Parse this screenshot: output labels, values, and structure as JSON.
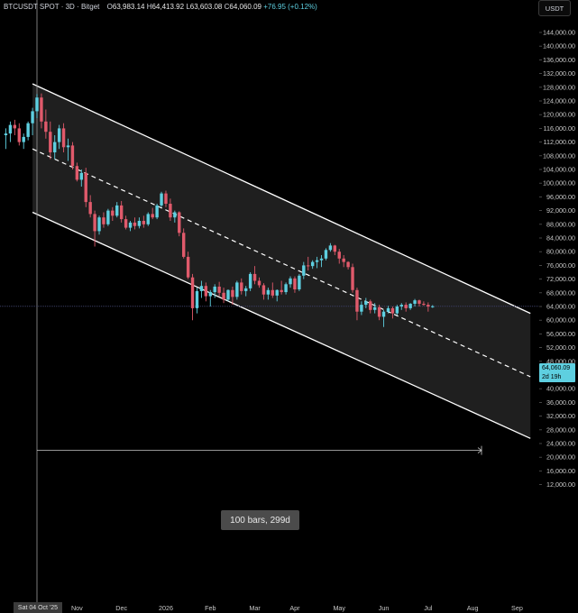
{
  "header": {
    "symbol": "BTCUSDT SPOT · 3D · Bitget",
    "o_label": "O",
    "o_val": "63,983.14",
    "h_label": "H",
    "h_val": "64,413.92",
    "l_label": "L",
    "l_val": "63,603.08",
    "c_label": "C",
    "c_val": "64,060.09",
    "change": "+76.95 (+0.12%)"
  },
  "currency_button": "USDT",
  "price_tag": {
    "price": "64,060.09",
    "countdown": "2d 19h"
  },
  "range_label": "100 bars, 299d",
  "crosshair_date": "Sat 04 Oct '25",
  "colors": {
    "up": "#5ecfe0",
    "down": "#e05a6b",
    "channel": "#ffffff",
    "fill": "#2a2a2a"
  },
  "chart_data": {
    "type": "candlestick",
    "y_axis": {
      "min": 12000,
      "max": 144000,
      "step": 4000,
      "tick_labels": [
        "144,000.00",
        "140,000.00",
        "136,000.00",
        "132,000.00",
        "128,000.00",
        "124,000.00",
        "120,000.00",
        "116,000.00",
        "112,000.00",
        "108,000.00",
        "104,000.00",
        "100,000.00",
        "96,000.00",
        "92,000.00",
        "88,000.00",
        "84,000.00",
        "80,000.00",
        "76,000.00",
        "72,000.00",
        "68,000.00",
        "64,000.00",
        "60,000.00",
        "56,000.00",
        "52,000.00",
        "48,000.00",
        "44,000.00",
        "40,000.00",
        "36,000.00",
        "32,000.00",
        "28,000.00",
        "24,000.00",
        "20,000.00",
        "16,000.00",
        "12,000.00"
      ]
    },
    "x_axis": {
      "ticks": [
        {
          "label": "Nov",
          "bar": 9
        },
        {
          "label": "Dec",
          "bar": 19
        },
        {
          "label": "2026",
          "bar": 29
        },
        {
          "label": "Feb",
          "bar": 39
        },
        {
          "label": "Mar",
          "bar": 49
        },
        {
          "label": "Apr",
          "bar": 58
        },
        {
          "label": "May",
          "bar": 68
        },
        {
          "label": "Jun",
          "bar": 78
        },
        {
          "label": "Jul",
          "bar": 88
        },
        {
          "label": "Aug",
          "bar": 98
        },
        {
          "label": "Sep",
          "bar": 108
        }
      ]
    },
    "channel": {
      "upper": [
        {
          "bar": -1,
          "price": 129000
        },
        {
          "bar": 111,
          "price": 62000
        }
      ],
      "middle": [
        {
          "bar": -1,
          "price": 110000
        },
        {
          "bar": 111,
          "price": 43500
        }
      ],
      "lower": [
        {
          "bar": -1,
          "price": 91500
        },
        {
          "bar": 111,
          "price": 25500
        }
      ]
    },
    "last_price": 64060.09,
    "measure": {
      "from_bar": 0,
      "to_bar": 100,
      "price": 22000
    },
    "candles": [
      [
        -7,
        114000,
        116000,
        110000,
        114500
      ],
      [
        -6,
        114500,
        118000,
        112000,
        117000
      ],
      [
        -5,
        117000,
        118500,
        114000,
        116000
      ],
      [
        -4,
        116000,
        117500,
        111000,
        112000
      ],
      [
        -3,
        112000,
        114500,
        110000,
        113500
      ],
      [
        -2,
        113500,
        118000,
        112500,
        117500
      ],
      [
        -1,
        117500,
        122000,
        114000,
        121000
      ],
      [
        0,
        121000,
        126000,
        119000,
        125000
      ],
      [
        1,
        125000,
        126200,
        116000,
        118000
      ],
      [
        2,
        118000,
        121500,
        113000,
        115000
      ],
      [
        3,
        115000,
        118000,
        107000,
        109000
      ],
      [
        4,
        109000,
        114000,
        107000,
        112000
      ],
      [
        5,
        112000,
        117000,
        110000,
        116000
      ],
      [
        6,
        116000,
        117500,
        109000,
        110500
      ],
      [
        7,
        110500,
        113000,
        106500,
        111000
      ],
      [
        8,
        111000,
        112000,
        104000,
        105000
      ],
      [
        9,
        105000,
        106000,
        100500,
        101000
      ],
      [
        10,
        101000,
        104000,
        99000,
        103000
      ],
      [
        11,
        103000,
        104500,
        93000,
        94500
      ],
      [
        12,
        94500,
        96500,
        90000,
        91000
      ],
      [
        13,
        91000,
        92000,
        81500,
        86000
      ],
      [
        14,
        86000,
        90500,
        85000,
        90000
      ],
      [
        15,
        90000,
        91500,
        87000,
        88000
      ],
      [
        16,
        88000,
        92500,
        87500,
        92000
      ],
      [
        17,
        92000,
        93000,
        89000,
        90500
      ],
      [
        18,
        90500,
        94500,
        90000,
        93500
      ],
      [
        19,
        93500,
        94800,
        88500,
        89500
      ],
      [
        20,
        89500,
        90500,
        86500,
        87000
      ],
      [
        21,
        87000,
        89000,
        86000,
        88500
      ],
      [
        22,
        88500,
        90000,
        86500,
        87500
      ],
      [
        23,
        87500,
        90000,
        86800,
        89000
      ],
      [
        24,
        89000,
        90500,
        87000,
        88000
      ],
      [
        25,
        88000,
        91500,
        87500,
        91000
      ],
      [
        26,
        91000,
        92800,
        89500,
        90000
      ],
      [
        27,
        90000,
        94000,
        89500,
        93500
      ],
      [
        28,
        93500,
        97500,
        93000,
        97000
      ],
      [
        29,
        97000,
        97800,
        93000,
        94000
      ],
      [
        30,
        94000,
        95500,
        89000,
        90000
      ],
      [
        31,
        90000,
        92000,
        88500,
        91500
      ],
      [
        32,
        91500,
        91800,
        84500,
        85500
      ],
      [
        33,
        85500,
        86800,
        78000,
        78500
      ],
      [
        34,
        78500,
        80000,
        72000,
        72500
      ],
      [
        35,
        72500,
        73500,
        60000,
        63500
      ],
      [
        36,
        63500,
        69500,
        62000,
        68500
      ],
      [
        37,
        68500,
        71500,
        66500,
        70000
      ],
      [
        38,
        70000,
        71000,
        65500,
        67000
      ],
      [
        39,
        67000,
        68800,
        64000,
        68200
      ],
      [
        40,
        68200,
        70500,
        66500,
        69800
      ],
      [
        41,
        69800,
        71200,
        67000,
        68000
      ],
      [
        42,
        68000,
        69500,
        65000,
        66000
      ],
      [
        43,
        66000,
        69000,
        65500,
        68800
      ],
      [
        44,
        68800,
        69800,
        64500,
        66800
      ],
      [
        45,
        66800,
        71500,
        66000,
        71000
      ],
      [
        46,
        71000,
        72200,
        67500,
        68500
      ],
      [
        47,
        68500,
        70000,
        67000,
        69300
      ],
      [
        48,
        69300,
        74000,
        68500,
        73500
      ],
      [
        49,
        73500,
        75800,
        70500,
        71500
      ],
      [
        50,
        71500,
        72500,
        69500,
        70200
      ],
      [
        51,
        70200,
        70800,
        66000,
        67500
      ],
      [
        52,
        67500,
        69500,
        66000,
        68800
      ],
      [
        53,
        68800,
        71000,
        66500,
        67200
      ],
      [
        54,
        67200,
        69000,
        65500,
        68800
      ],
      [
        55,
        68800,
        71500,
        67500,
        68200
      ],
      [
        56,
        68200,
        71000,
        67500,
        70500
      ],
      [
        57,
        70500,
        72800,
        69500,
        72200
      ],
      [
        58,
        72200,
        72800,
        68000,
        69000
      ],
      [
        59,
        69000,
        73500,
        68500,
        73000
      ],
      [
        60,
        73000,
        77000,
        72000,
        76000
      ],
      [
        61,
        76000,
        78500,
        74500,
        75800
      ],
      [
        62,
        75800,
        77500,
        75000,
        77000
      ],
      [
        63,
        77000,
        78500,
        75200,
        77500
      ],
      [
        64,
        77500,
        79000,
        75500,
        78000
      ],
      [
        65,
        78000,
        81000,
        77500,
        80500
      ],
      [
        66,
        80500,
        82500,
        80000,
        81800
      ],
      [
        67,
        81800,
        82000,
        79000,
        80000
      ],
      [
        68,
        80000,
        80800,
        76500,
        78000
      ],
      [
        69,
        78000,
        79000,
        75500,
        77000
      ],
      [
        70,
        77000,
        77200,
        74800,
        75500
      ],
      [
        71,
        75500,
        76500,
        68000,
        68800
      ],
      [
        72,
        68800,
        69500,
        60000,
        62500
      ],
      [
        73,
        62500,
        65500,
        61500,
        64500
      ],
      [
        74,
        64500,
        66500,
        63500,
        65500
      ],
      [
        75,
        65500,
        66000,
        62000,
        63000
      ],
      [
        76,
        63000,
        65000,
        62000,
        63800
      ],
      [
        77,
        63800,
        64500,
        60000,
        61000
      ],
      [
        78,
        61000,
        63000,
        58000,
        62500
      ],
      [
        79,
        62500,
        64200,
        62000,
        63500
      ],
      [
        80,
        63500,
        64000,
        60500,
        62000
      ],
      [
        81,
        62000,
        64500,
        61500,
        64000
      ],
      [
        82,
        64000,
        65000,
        63000,
        64500
      ],
      [
        83,
        64500,
        65200,
        62500,
        63500
      ],
      [
        84,
        63500,
        65000,
        63000,
        64800
      ],
      [
        85,
        64800,
        66200,
        64000,
        65800
      ],
      [
        86,
        65800,
        66000,
        64000,
        64800
      ],
      [
        87,
        64800,
        65500,
        64200,
        64500
      ],
      [
        88,
        64500,
        65200,
        62500,
        63983
      ],
      [
        89,
        63983,
        64414,
        63603,
        64060
      ]
    ]
  }
}
